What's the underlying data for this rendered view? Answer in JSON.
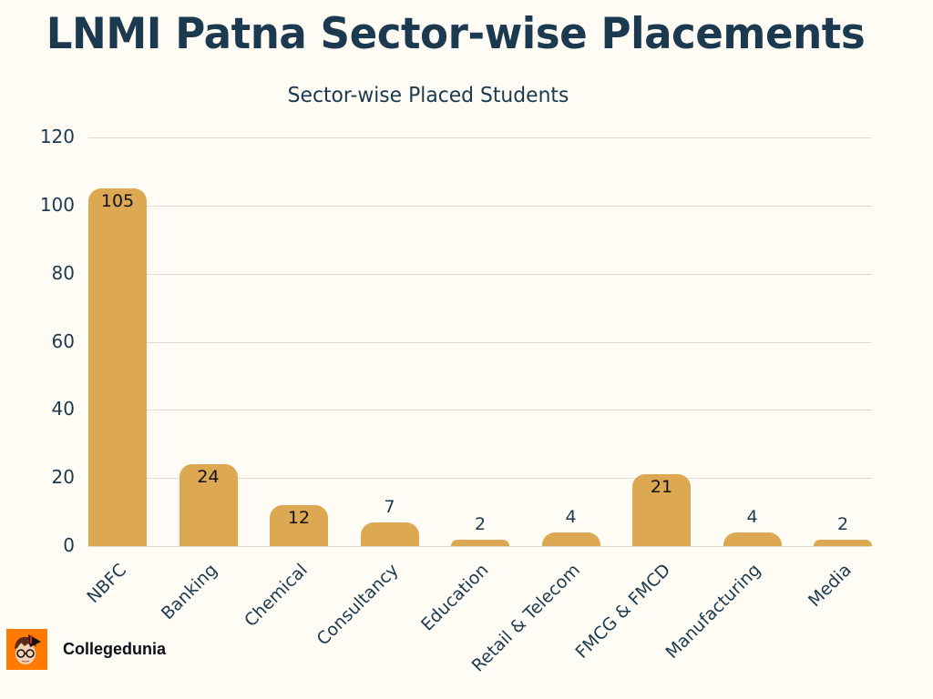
{
  "header": {
    "title": "LNMI Patna Sector-wise Placements",
    "subtitle": "Sector-wise Placed Students"
  },
  "branding": {
    "logo_icon": "collegedunia-mascot-icon",
    "name": "Collegedunia",
    "logo_bg": "#ff7a00"
  },
  "colors": {
    "bar": "#dca852",
    "text": "#1b3a4f",
    "background": "#fffcf5"
  },
  "chart_data": {
    "type": "bar",
    "title": "Sector-wise Placed Students",
    "xlabel": "",
    "ylabel": "",
    "ylim": [
      0,
      120
    ],
    "yticks": [
      0,
      20,
      40,
      60,
      80,
      100,
      120
    ],
    "grid": true,
    "legend": "none",
    "categories": [
      "NBFC",
      "Banking",
      "Chemical",
      "Consultancy",
      "Education",
      "Retail & Telecom",
      "FMCG & FMCD",
      "Manufacturing",
      "Media"
    ],
    "values": [
      105,
      24,
      12,
      7,
      2,
      4,
      21,
      4,
      2
    ]
  }
}
